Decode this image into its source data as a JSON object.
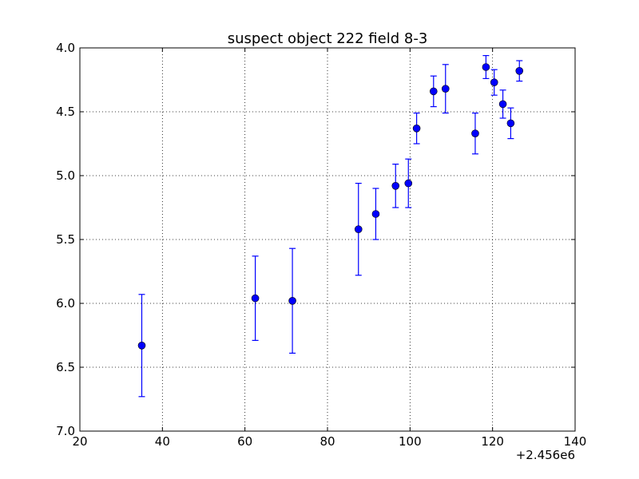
{
  "chart_data": {
    "type": "scatter",
    "title": "suspect object 222 field 8-3",
    "xlabel": "",
    "ylabel": "",
    "x_offset_label": "+2.456e6",
    "xlim": [
      20,
      140
    ],
    "ylim": [
      7.0,
      4.0
    ],
    "y_inverted": true,
    "x_ticks": [
      20,
      40,
      60,
      80,
      100,
      120,
      140
    ],
    "x_tick_labels": [
      "20",
      "40",
      "60",
      "80",
      "100",
      "120",
      "140"
    ],
    "y_ticks": [
      4.0,
      4.5,
      5.0,
      5.5,
      6.0,
      6.5,
      7.0
    ],
    "y_tick_labels": [
      "4.0",
      "4.5",
      "5.0",
      "5.5",
      "6.0",
      "6.5",
      "7.0"
    ],
    "grid": true,
    "color": "#0000ff",
    "series": [
      {
        "points": [
          {
            "x": 35.0,
            "y": 6.33,
            "err": 0.4
          },
          {
            "x": 62.5,
            "y": 5.96,
            "err": 0.33
          },
          {
            "x": 71.5,
            "y": 5.98,
            "err": 0.41
          },
          {
            "x": 87.5,
            "y": 5.42,
            "err": 0.36
          },
          {
            "x": 91.7,
            "y": 5.3,
            "err": 0.2
          },
          {
            "x": 96.5,
            "y": 5.08,
            "err": 0.17
          },
          {
            "x": 99.6,
            "y": 5.06,
            "err": 0.19
          },
          {
            "x": 101.6,
            "y": 4.63,
            "err": 0.12
          },
          {
            "x": 105.7,
            "y": 4.34,
            "err": 0.12
          },
          {
            "x": 108.6,
            "y": 4.32,
            "err": 0.19
          },
          {
            "x": 115.8,
            "y": 4.67,
            "err": 0.16
          },
          {
            "x": 118.4,
            "y": 4.15,
            "err": 0.09
          },
          {
            "x": 120.4,
            "y": 4.27,
            "err": 0.1
          },
          {
            "x": 122.5,
            "y": 4.44,
            "err": 0.11
          },
          {
            "x": 124.4,
            "y": 4.59,
            "err": 0.12
          },
          {
            "x": 126.5,
            "y": 4.18,
            "err": 0.08
          }
        ]
      }
    ]
  }
}
